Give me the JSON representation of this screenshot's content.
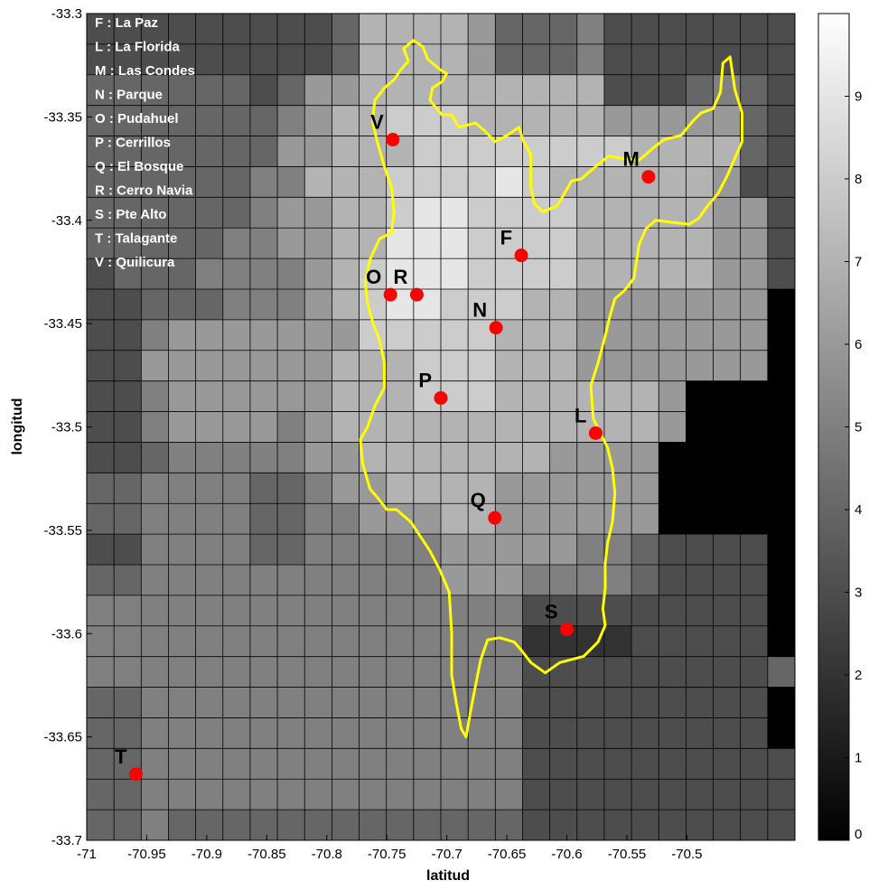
{
  "chart_data": {
    "type": "heatmap",
    "title": "",
    "xlabel": "latitud",
    "ylabel": "longitud",
    "xlim": [
      -71.0,
      -70.41
    ],
    "ylim": [
      -33.7,
      -33.3
    ],
    "grid": true,
    "x_ticks": [
      -71,
      -70.95,
      -70.9,
      -70.85,
      -70.8,
      -70.75,
      -70.7,
      -70.65,
      -70.6,
      -70.55,
      -70.5
    ],
    "x_tick_labels": [
      "-71",
      "-70.95",
      "-70.9",
      "-70.85",
      "-70.8",
      "-70.75",
      "-70.7",
      "-70.65",
      "-70.6",
      "-70.55",
      "-70.5"
    ],
    "y_ticks": [
      -33.3,
      -33.35,
      -33.4,
      -33.45,
      -33.5,
      -33.55,
      -33.6,
      -33.65,
      -33.7
    ],
    "y_tick_labels": [
      "-33.3",
      "-33.35",
      "-33.4",
      "-33.45",
      "-33.5",
      "-33.55",
      "-33.6",
      "-33.65",
      "-33.7"
    ],
    "colorbar": {
      "min": 0,
      "max": 10,
      "ticks": [
        0,
        1,
        2,
        3,
        4,
        5,
        6,
        7,
        8,
        9
      ],
      "tick_labels": [
        "0",
        "1",
        "2",
        "3",
        "4",
        "5",
        "6",
        "7",
        "8",
        "9"
      ]
    },
    "grid_values": [
      [
        3,
        3,
        3,
        3,
        3,
        3,
        3,
        3,
        3,
        4,
        7,
        7,
        7,
        7,
        6,
        4,
        4,
        4,
        5,
        3,
        3,
        3,
        3,
        3,
        3,
        3
      ],
      [
        3,
        3,
        3,
        3,
        3,
        3,
        3,
        3,
        3,
        4,
        7,
        7,
        7,
        7,
        6,
        4,
        4,
        4,
        5,
        3,
        3,
        3,
        3,
        3,
        3,
        3
      ],
      [
        4,
        4,
        4,
        4,
        4,
        4,
        3,
        4,
        6,
        6,
        7,
        7,
        7,
        7,
        7,
        7,
        7,
        7,
        7,
        3,
        3,
        3,
        4,
        5,
        4,
        3
      ],
      [
        4,
        4,
        4,
        4,
        4,
        4,
        4,
        5,
        6,
        7,
        7,
        8,
        8,
        8,
        7,
        7,
        7,
        7,
        7,
        6,
        6,
        6,
        6,
        6,
        4,
        3
      ],
      [
        4,
        4,
        4,
        4,
        4,
        4,
        4,
        6,
        6,
        7,
        7,
        7,
        8,
        8,
        8,
        8,
        8,
        8,
        8,
        8,
        7,
        7,
        7,
        7,
        4,
        3
      ],
      [
        4,
        4,
        4,
        4,
        4,
        4,
        5,
        5,
        7,
        7,
        7,
        8,
        8,
        8,
        8,
        9,
        8,
        7,
        7,
        7,
        7,
        7,
        7,
        6,
        3,
        3
      ],
      [
        4,
        4,
        4,
        4,
        4,
        4,
        5,
        6,
        6,
        7,
        7,
        8,
        9,
        9,
        8,
        8,
        8,
        8,
        7,
        7,
        7,
        7,
        7,
        6,
        6,
        3
      ],
      [
        4,
        4,
        4,
        4,
        4,
        5,
        5,
        6,
        6,
        7,
        7,
        9,
        9,
        9,
        8,
        8,
        8,
        8,
        7,
        7,
        7,
        7,
        7,
        6,
        6,
        3
      ],
      [
        3,
        4,
        4,
        4,
        5,
        5,
        5,
        5,
        6,
        7,
        8,
        9,
        9,
        9,
        8,
        8,
        8,
        8,
        7,
        7,
        7,
        7,
        7,
        6,
        6,
        3
      ],
      [
        3,
        3,
        4,
        4,
        4,
        5,
        5,
        5,
        6,
        7,
        8,
        9,
        9,
        8,
        8,
        8,
        7,
        7,
        6,
        6,
        6,
        6,
        6,
        6,
        6,
        0
      ],
      [
        3,
        3,
        5,
        6,
        6,
        6,
        6,
        6,
        6,
        6,
        8,
        8,
        8,
        8,
        8,
        7,
        7,
        7,
        6,
        6,
        6,
        6,
        6,
        6,
        6,
        0
      ],
      [
        3,
        3,
        6,
        6,
        6,
        6,
        6,
        6,
        6,
        7,
        7,
        7,
        8,
        8,
        8,
        7,
        7,
        7,
        6,
        6,
        6,
        6,
        6,
        6,
        6,
        0
      ],
      [
        3,
        3,
        5,
        6,
        6,
        6,
        6,
        6,
        6,
        7,
        7,
        7,
        8,
        8,
        8,
        7,
        7,
        7,
        7,
        7,
        7,
        6,
        0,
        0,
        0,
        0
      ],
      [
        3,
        3,
        5,
        6,
        6,
        6,
        6,
        5,
        6,
        7,
        7,
        7,
        7,
        7,
        7,
        7,
        7,
        7,
        7,
        7,
        7,
        6,
        0,
        0,
        0,
        0
      ],
      [
        3,
        3,
        4,
        5,
        5,
        5,
        5,
        5,
        6,
        6,
        7,
        7,
        7,
        7,
        7,
        7,
        7,
        6,
        6,
        6,
        6,
        0,
        0,
        0,
        0,
        0
      ],
      [
        4,
        4,
        5,
        5,
        5,
        5,
        4,
        4,
        5,
        6,
        6,
        7,
        7,
        7,
        7,
        6,
        6,
        6,
        6,
        6,
        6,
        0,
        0,
        0,
        0,
        0
      ],
      [
        4,
        4,
        5,
        5,
        5,
        5,
        4,
        4,
        5,
        5,
        6,
        6,
        6,
        7,
        7,
        6,
        6,
        6,
        6,
        6,
        6,
        0,
        0,
        0,
        0,
        0
      ],
      [
        3,
        3,
        5,
        5,
        5,
        5,
        4,
        4,
        5,
        5,
        5,
        5,
        5,
        6,
        6,
        6,
        6,
        6,
        5,
        5,
        4,
        3,
        3,
        3,
        3,
        0
      ],
      [
        4,
        4,
        5,
        5,
        5,
        5,
        5,
        5,
        5,
        5,
        5,
        5,
        5,
        6,
        6,
        6,
        5,
        5,
        5,
        5,
        4,
        3,
        3,
        3,
        3,
        0
      ],
      [
        5,
        5,
        5,
        5,
        5,
        5,
        5,
        5,
        5,
        5,
        5,
        5,
        5,
        5,
        5,
        5,
        3,
        3,
        3,
        3,
        3,
        3,
        3,
        3,
        3,
        0
      ],
      [
        5,
        5,
        5,
        5,
        5,
        5,
        5,
        5,
        5,
        5,
        5,
        5,
        5,
        5,
        5,
        5,
        2,
        2,
        2,
        2,
        3,
        3,
        3,
        3,
        3,
        0
      ],
      [
        5,
        5,
        5,
        5,
        5,
        5,
        5,
        5,
        5,
        5,
        5,
        5,
        5,
        5,
        5,
        5,
        3,
        3,
        3,
        3,
        3,
        3,
        3,
        3,
        3,
        4
      ],
      [
        4,
        4,
        5,
        5,
        5,
        5,
        5,
        5,
        5,
        5,
        5,
        5,
        5,
        5,
        5,
        5,
        3,
        3,
        3,
        3,
        3,
        3,
        3,
        3,
        3,
        0
      ],
      [
        4,
        4,
        5,
        5,
        5,
        5,
        5,
        5,
        5,
        5,
        5,
        5,
        5,
        5,
        5,
        5,
        3,
        3,
        3,
        3,
        3,
        3,
        3,
        3,
        3,
        0
      ],
      [
        4,
        4,
        5,
        5,
        5,
        5,
        5,
        5,
        5,
        5,
        5,
        5,
        5,
        5,
        5,
        5,
        3,
        3,
        3,
        3,
        3,
        3,
        3,
        3,
        3,
        3
      ],
      [
        4,
        4,
        5,
        5,
        5,
        5,
        5,
        5,
        5,
        5,
        5,
        5,
        5,
        5,
        5,
        5,
        3,
        3,
        3,
        3,
        3,
        3,
        3,
        3,
        3,
        3
      ],
      [
        4,
        4,
        5,
        4,
        4,
        4,
        4,
        4,
        4,
        4,
        4,
        4,
        4,
        4,
        4,
        4,
        3,
        3,
        3,
        3,
        3,
        3,
        3,
        3,
        3,
        3
      ]
    ],
    "legend": [
      "F : La Paz",
      "L : La Florida",
      "M : Las Condes",
      "N : Parque",
      "O : Pudahuel",
      "P : Cerrillos",
      "Q : El Bosque",
      "R : Cerro Navia",
      "S : Pte Alto",
      "T : Talagante",
      "V : Quilicura"
    ],
    "sites": [
      {
        "label": "F",
        "x": -70.638,
        "y": -33.417
      },
      {
        "label": "L",
        "x": -70.576,
        "y": -33.503
      },
      {
        "label": "M",
        "x": -70.532,
        "y": -33.379
      },
      {
        "label": "N",
        "x": -70.659,
        "y": -33.452
      },
      {
        "label": "O",
        "x": -70.747,
        "y": -33.436
      },
      {
        "label": "R",
        "x": -70.725,
        "y": -33.436
      },
      {
        "label": "P",
        "x": -70.705,
        "y": -33.486
      },
      {
        "label": "Q",
        "x": -70.66,
        "y": -33.544
      },
      {
        "label": "S",
        "x": -70.6,
        "y": -33.598
      },
      {
        "label": "T",
        "x": -70.959,
        "y": -33.668
      },
      {
        "label": "V",
        "x": -70.745,
        "y": -33.361
      }
    ],
    "outline": [
      [
        -70.738,
        -33.327
      ],
      [
        -70.732,
        -33.323
      ],
      [
        -70.736,
        -33.317
      ],
      [
        -70.728,
        -33.313
      ],
      [
        -70.72,
        -33.316
      ],
      [
        -70.716,
        -33.322
      ],
      [
        -70.706,
        -33.327
      ],
      [
        -70.7,
        -33.329
      ],
      [
        -70.704,
        -33.333
      ],
      [
        -70.712,
        -33.336
      ],
      [
        -70.714,
        -33.342
      ],
      [
        -70.704,
        -33.349
      ],
      [
        -70.696,
        -33.349
      ],
      [
        -70.69,
        -33.355
      ],
      [
        -70.676,
        -33.353
      ],
      [
        -70.668,
        -33.357
      ],
      [
        -70.66,
        -33.362
      ],
      [
        -70.65,
        -33.359
      ],
      [
        -70.64,
        -33.355
      ],
      [
        -70.636,
        -33.362
      ],
      [
        -70.63,
        -33.368
      ],
      [
        -70.63,
        -33.384
      ],
      [
        -70.627,
        -33.392
      ],
      [
        -70.62,
        -33.396
      ],
      [
        -70.608,
        -33.393
      ],
      [
        -70.596,
        -33.381
      ],
      [
        -70.588,
        -33.38
      ],
      [
        -70.574,
        -33.373
      ],
      [
        -70.565,
        -33.369
      ],
      [
        -70.555,
        -33.37
      ],
      [
        -70.54,
        -33.371
      ],
      [
        -70.528,
        -33.365
      ],
      [
        -70.519,
        -33.361
      ],
      [
        -70.505,
        -33.359
      ],
      [
        -70.495,
        -33.352
      ],
      [
        -70.488,
        -33.348
      ],
      [
        -70.478,
        -33.346
      ],
      [
        -70.472,
        -33.338
      ],
      [
        -70.47,
        -33.324
      ],
      [
        -70.464,
        -33.321
      ],
      [
        -70.46,
        -33.337
      ],
      [
        -70.454,
        -33.348
      ],
      [
        -70.454,
        -33.362
      ],
      [
        -70.466,
        -33.378
      ],
      [
        -70.474,
        -33.387
      ],
      [
        -70.484,
        -33.394
      ],
      [
        -70.49,
        -33.399
      ],
      [
        -70.498,
        -33.402
      ],
      [
        -70.513,
        -33.401
      ],
      [
        -70.526,
        -33.4
      ],
      [
        -70.534,
        -33.404
      ],
      [
        -70.54,
        -33.412
      ],
      [
        -70.544,
        -33.428
      ],
      [
        -70.552,
        -33.434
      ],
      [
        -70.56,
        -33.438
      ],
      [
        -70.564,
        -33.446
      ],
      [
        -70.568,
        -33.456
      ],
      [
        -70.574,
        -33.469
      ],
      [
        -70.58,
        -33.48
      ],
      [
        -70.578,
        -33.496
      ],
      [
        -70.572,
        -33.503
      ],
      [
        -70.566,
        -33.51
      ],
      [
        -70.562,
        -33.52
      ],
      [
        -70.56,
        -33.532
      ],
      [
        -70.562,
        -33.546
      ],
      [
        -70.566,
        -33.556
      ],
      [
        -70.568,
        -33.566
      ],
      [
        -70.568,
        -33.578
      ],
      [
        -70.57,
        -33.588
      ],
      [
        -70.568,
        -33.596
      ],
      [
        -70.574,
        -33.604
      ],
      [
        -70.586,
        -33.611
      ],
      [
        -70.606,
        -33.614
      ],
      [
        -70.618,
        -33.619
      ],
      [
        -70.63,
        -33.614
      ],
      [
        -70.638,
        -33.608
      ],
      [
        -70.644,
        -33.604
      ],
      [
        -70.656,
        -33.602
      ],
      [
        -70.666,
        -33.603
      ],
      [
        -70.672,
        -33.613
      ],
      [
        -70.676,
        -33.625
      ],
      [
        -70.68,
        -33.637
      ],
      [
        -70.684,
        -33.65
      ],
      [
        -70.688,
        -33.646
      ],
      [
        -70.692,
        -33.634
      ],
      [
        -70.696,
        -33.62
      ],
      [
        -70.696,
        -33.6
      ],
      [
        -70.698,
        -33.58
      ],
      [
        -70.706,
        -33.569
      ],
      [
        -70.714,
        -33.56
      ],
      [
        -70.722,
        -33.553
      ],
      [
        -70.73,
        -33.546
      ],
      [
        -70.742,
        -33.54
      ],
      [
        -70.75,
        -33.54
      ],
      [
        -70.758,
        -33.534
      ],
      [
        -70.764,
        -33.53
      ],
      [
        -70.77,
        -33.518
      ],
      [
        -70.772,
        -33.506
      ],
      [
        -70.766,
        -33.5
      ],
      [
        -70.76,
        -33.49
      ],
      [
        -70.752,
        -33.481
      ],
      [
        -70.752,
        -33.469
      ],
      [
        -70.756,
        -33.458
      ],
      [
        -70.762,
        -33.449
      ],
      [
        -70.766,
        -33.44
      ],
      [
        -70.768,
        -33.43
      ],
      [
        -70.764,
        -33.419
      ],
      [
        -70.756,
        -33.409
      ],
      [
        -70.746,
        -33.406
      ],
      [
        -70.744,
        -33.396
      ],
      [
        -70.746,
        -33.384
      ],
      [
        -70.752,
        -33.374
      ],
      [
        -70.758,
        -33.362
      ],
      [
        -70.762,
        -33.352
      ],
      [
        -70.76,
        -33.342
      ],
      [
        -70.752,
        -33.336
      ],
      [
        -70.744,
        -33.332
      ],
      [
        -70.738,
        -33.327
      ]
    ]
  }
}
